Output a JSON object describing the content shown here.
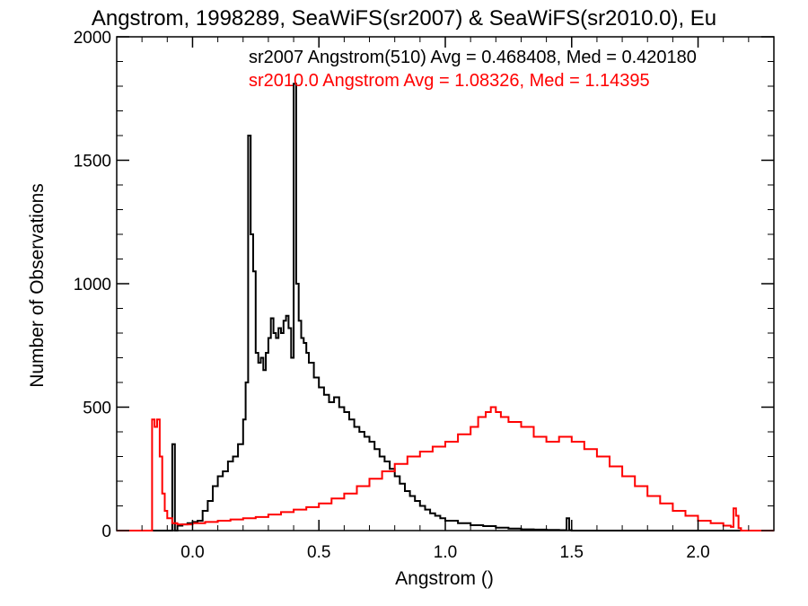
{
  "chart_data": {
    "type": "histogram",
    "title": "Angstrom, 1998289, SeaWiFS(sr2007) & SeaWiFS(sr2010.0), Eu",
    "xlabel": "Angstrom ()",
    "ylabel": "Number of Observations",
    "xlim": [
      -0.3,
      2.3
    ],
    "ylim": [
      0,
      2000
    ],
    "x_ticks": [
      0.0,
      0.5,
      1.0,
      1.5,
      2.0
    ],
    "x_tick_labels": [
      "0.0",
      "0.5",
      "1.0",
      "1.5",
      "2.0"
    ],
    "y_ticks": [
      0,
      500,
      1000,
      1500,
      2000
    ],
    "y_tick_labels": [
      "0",
      "500",
      "1000",
      "1500",
      "2000"
    ],
    "grid": false,
    "series": [
      {
        "name": "sr2007 Angstrom(510) Avg = 0.468408, Med = 0.420180",
        "color": "#000000",
        "points": [
          [
            -0.3,
            0
          ],
          [
            -0.08,
            0
          ],
          [
            -0.08,
            350
          ],
          [
            -0.07,
            350
          ],
          [
            -0.07,
            0
          ],
          [
            -0.06,
            20
          ],
          [
            -0.04,
            25
          ],
          [
            -0.02,
            30
          ],
          [
            0.0,
            35
          ],
          [
            0.02,
            40
          ],
          [
            0.04,
            80
          ],
          [
            0.06,
            120
          ],
          [
            0.08,
            180
          ],
          [
            0.1,
            220
          ],
          [
            0.12,
            240
          ],
          [
            0.14,
            280
          ],
          [
            0.16,
            300
          ],
          [
            0.18,
            350
          ],
          [
            0.2,
            450
          ],
          [
            0.21,
            600
          ],
          [
            0.22,
            1600
          ],
          [
            0.23,
            1200
          ],
          [
            0.24,
            1050
          ],
          [
            0.25,
            720
          ],
          [
            0.26,
            680
          ],
          [
            0.27,
            700
          ],
          [
            0.28,
            650
          ],
          [
            0.29,
            720
          ],
          [
            0.3,
            780
          ],
          [
            0.31,
            860
          ],
          [
            0.32,
            800
          ],
          [
            0.33,
            780
          ],
          [
            0.34,
            820
          ],
          [
            0.35,
            800
          ],
          [
            0.36,
            850
          ],
          [
            0.37,
            870
          ],
          [
            0.38,
            820
          ],
          [
            0.39,
            700
          ],
          [
            0.4,
            1810
          ],
          [
            0.41,
            1000
          ],
          [
            0.42,
            850
          ],
          [
            0.43,
            780
          ],
          [
            0.44,
            760
          ],
          [
            0.45,
            720
          ],
          [
            0.46,
            680
          ],
          [
            0.48,
            620
          ],
          [
            0.5,
            580
          ],
          [
            0.52,
            550
          ],
          [
            0.54,
            520
          ],
          [
            0.56,
            540
          ],
          [
            0.58,
            500
          ],
          [
            0.6,
            480
          ],
          [
            0.62,
            450
          ],
          [
            0.64,
            420
          ],
          [
            0.66,
            400
          ],
          [
            0.68,
            380
          ],
          [
            0.7,
            360
          ],
          [
            0.72,
            330
          ],
          [
            0.74,
            300
          ],
          [
            0.76,
            280
          ],
          [
            0.78,
            250
          ],
          [
            0.8,
            220
          ],
          [
            0.82,
            190
          ],
          [
            0.84,
            160
          ],
          [
            0.86,
            140
          ],
          [
            0.88,
            120
          ],
          [
            0.9,
            100
          ],
          [
            0.92,
            85
          ],
          [
            0.94,
            70
          ],
          [
            0.96,
            60
          ],
          [
            0.98,
            50
          ],
          [
            1.0,
            40
          ],
          [
            1.05,
            30
          ],
          [
            1.1,
            22
          ],
          [
            1.15,
            18
          ],
          [
            1.2,
            12
          ],
          [
            1.25,
            8
          ],
          [
            1.3,
            5
          ],
          [
            1.35,
            4
          ],
          [
            1.4,
            3
          ],
          [
            1.45,
            2
          ],
          [
            1.47,
            2
          ],
          [
            1.48,
            50
          ],
          [
            1.49,
            2
          ],
          [
            1.5,
            0
          ],
          [
            2.3,
            0
          ]
        ]
      },
      {
        "name": "sr2010.0 Angstrom Avg = 1.08326, Med = 1.14395",
        "color": "#ff0000",
        "points": [
          [
            -0.3,
            0
          ],
          [
            -0.16,
            0
          ],
          [
            -0.16,
            450
          ],
          [
            -0.15,
            420
          ],
          [
            -0.14,
            450
          ],
          [
            -0.13,
            300
          ],
          [
            -0.12,
            150
          ],
          [
            -0.11,
            80
          ],
          [
            -0.1,
            50
          ],
          [
            -0.08,
            30
          ],
          [
            -0.06,
            25
          ],
          [
            0.0,
            30
          ],
          [
            0.05,
            35
          ],
          [
            0.1,
            40
          ],
          [
            0.15,
            45
          ],
          [
            0.2,
            50
          ],
          [
            0.25,
            55
          ],
          [
            0.3,
            65
          ],
          [
            0.35,
            75
          ],
          [
            0.4,
            85
          ],
          [
            0.45,
            95
          ],
          [
            0.5,
            110
          ],
          [
            0.55,
            130
          ],
          [
            0.6,
            150
          ],
          [
            0.65,
            180
          ],
          [
            0.7,
            210
          ],
          [
            0.75,
            240
          ],
          [
            0.8,
            270
          ],
          [
            0.85,
            300
          ],
          [
            0.9,
            320
          ],
          [
            0.95,
            340
          ],
          [
            1.0,
            360
          ],
          [
            1.05,
            390
          ],
          [
            1.1,
            420
          ],
          [
            1.13,
            460
          ],
          [
            1.16,
            480
          ],
          [
            1.18,
            500
          ],
          [
            1.2,
            480
          ],
          [
            1.22,
            460
          ],
          [
            1.25,
            440
          ],
          [
            1.3,
            420
          ],
          [
            1.35,
            380
          ],
          [
            1.4,
            360
          ],
          [
            1.45,
            380
          ],
          [
            1.5,
            360
          ],
          [
            1.55,
            330
          ],
          [
            1.6,
            300
          ],
          [
            1.65,
            260
          ],
          [
            1.7,
            220
          ],
          [
            1.75,
            180
          ],
          [
            1.8,
            140
          ],
          [
            1.85,
            110
          ],
          [
            1.9,
            80
          ],
          [
            1.95,
            60
          ],
          [
            2.0,
            40
          ],
          [
            2.05,
            30
          ],
          [
            2.1,
            20
          ],
          [
            2.13,
            15
          ],
          [
            2.14,
            90
          ],
          [
            2.15,
            60
          ],
          [
            2.16,
            10
          ],
          [
            2.17,
            0
          ],
          [
            2.3,
            0
          ]
        ]
      }
    ]
  }
}
